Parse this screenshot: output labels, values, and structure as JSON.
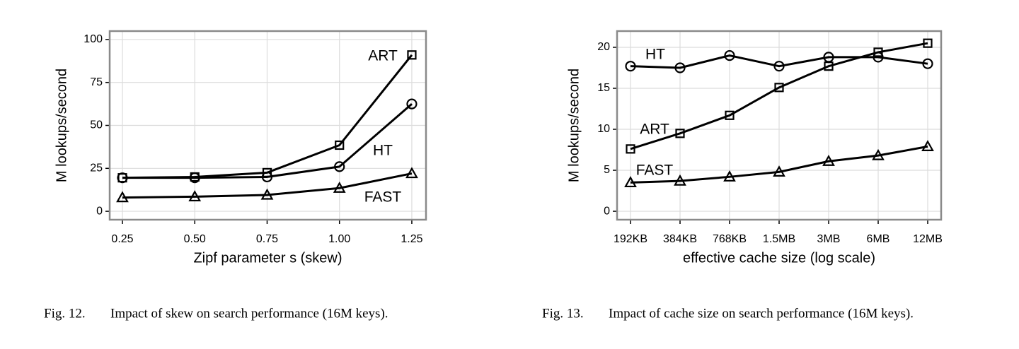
{
  "chart_data": [
    {
      "type": "line",
      "x": [
        0.25,
        0.5,
        0.75,
        1.0,
        1.25
      ],
      "xticks": [
        {
          "value": 0.25,
          "label": "0.25"
        },
        {
          "value": 0.5,
          "label": "0.50"
        },
        {
          "value": 0.75,
          "label": "0.75"
        },
        {
          "value": 1.0,
          "label": "1.00"
        },
        {
          "value": 1.25,
          "label": "1.25"
        }
      ],
      "xlim": [
        0.206,
        1.299
      ],
      "ylim": [
        -4.9,
        104.9
      ],
      "yticks": [
        0,
        25,
        50,
        75,
        100
      ],
      "grid": true,
      "xlabel": "Zipf parameter s (skew)",
      "ylabel": "M lookups/second",
      "caption_label": "Fig. 12.",
      "caption": "Impact of skew on search performance (16M keys).",
      "series": [
        {
          "name": "ART",
          "color": "#000000",
          "marker": "square",
          "values": [
            19.5,
            20,
            22.5,
            38.5,
            91
          ]
        },
        {
          "name": "HT",
          "color": "#000000",
          "marker": "circle",
          "values": [
            19.5,
            19.5,
            20,
            26,
            62.5
          ]
        },
        {
          "name": "FAST",
          "color": "#000000",
          "marker": "triangle",
          "values": [
            8,
            8.5,
            9.5,
            13.5,
            22
          ]
        }
      ]
    },
    {
      "type": "line",
      "categories": [
        "192KB",
        "384KB",
        "768KB",
        "1.5MB",
        "3MB",
        "6MB",
        "12MB"
      ],
      "log_scale_x": true,
      "ylim": [
        -1.03,
        21.98
      ],
      "yticks": [
        0,
        5,
        10,
        15,
        20
      ],
      "grid": true,
      "xlabel": "effective cache size (log scale)",
      "ylabel": "M lookups/second",
      "caption_label": "Fig. 13.",
      "caption": "Impact of cache size on search performance (16M keys).",
      "series": [
        {
          "name": "HT",
          "color": "#000000",
          "marker": "circle",
          "values": [
            17.7,
            17.5,
            19,
            17.7,
            18.8,
            18.8,
            18
          ]
        },
        {
          "name": "ART",
          "color": "#000000",
          "marker": "square",
          "values": [
            7.6,
            9.5,
            11.7,
            15.1,
            17.7,
            19.4,
            20.5
          ]
        },
        {
          "name": "FAST",
          "color": "#000000",
          "marker": "triangle",
          "values": [
            3.5,
            3.7,
            4.2,
            4.8,
            6.1,
            6.8,
            7.9
          ]
        }
      ]
    }
  ]
}
